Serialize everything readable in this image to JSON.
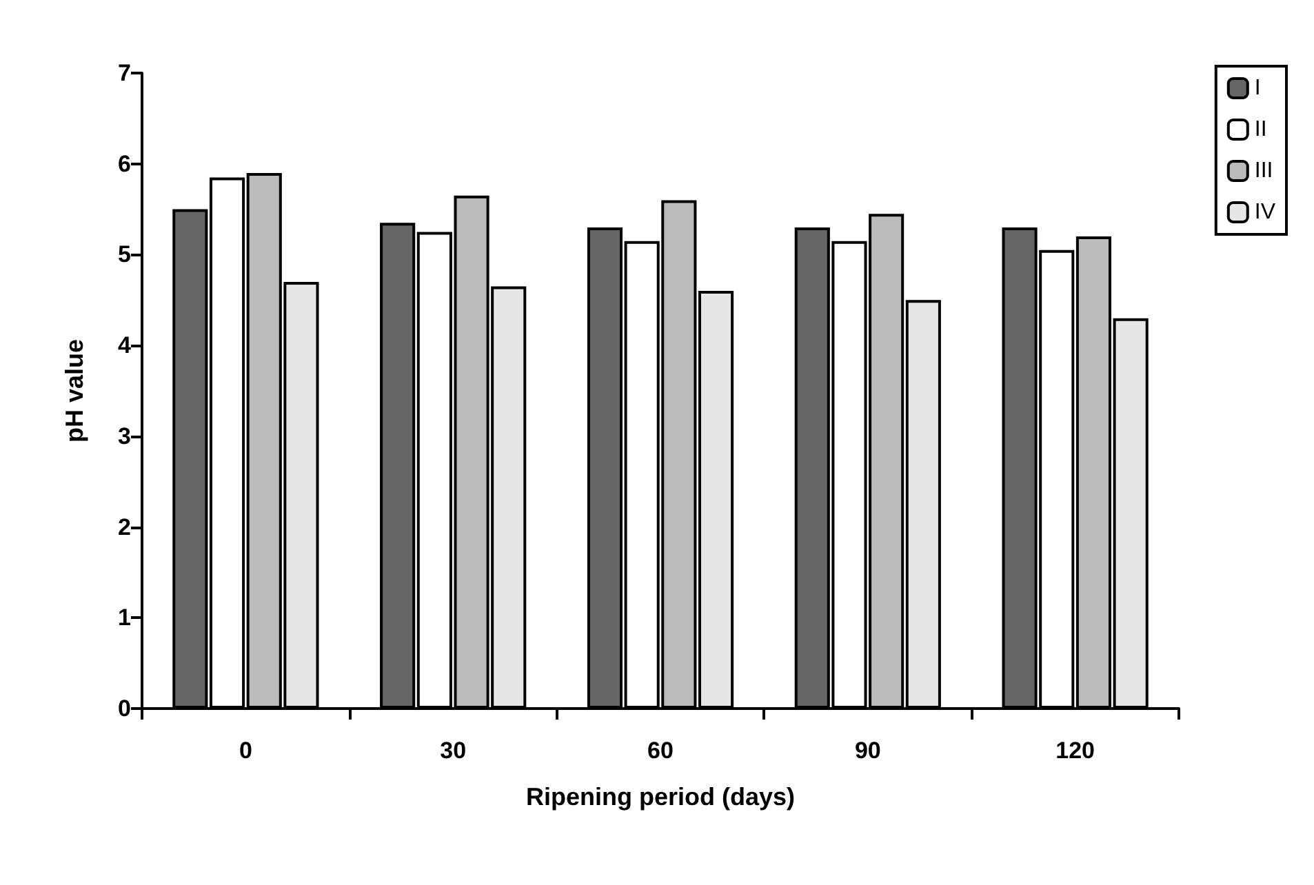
{
  "chart_data": {
    "type": "bar",
    "xlabel": "Ripening period (days)",
    "ylabel": "pH value",
    "categories": [
      "0",
      "30",
      "60",
      "90",
      "120"
    ],
    "series": [
      {
        "name": "I",
        "color": "#666666",
        "values": [
          5.5,
          5.35,
          5.3,
          5.3,
          5.3
        ]
      },
      {
        "name": "II",
        "color": "#ffffff",
        "values": [
          5.85,
          5.25,
          5.15,
          5.15,
          5.05
        ]
      },
      {
        "name": "III",
        "color": "#bbbbbb",
        "values": [
          5.9,
          5.65,
          5.6,
          5.45,
          5.2
        ]
      },
      {
        "name": "IV",
        "color": "#e6e6e6",
        "values": [
          4.7,
          4.65,
          4.6,
          4.5,
          4.3
        ]
      }
    ],
    "ylim": [
      0,
      7
    ],
    "yticks": [
      0,
      1,
      2,
      3,
      4,
      5,
      6,
      7
    ],
    "grid": false,
    "legend": "top right"
  }
}
